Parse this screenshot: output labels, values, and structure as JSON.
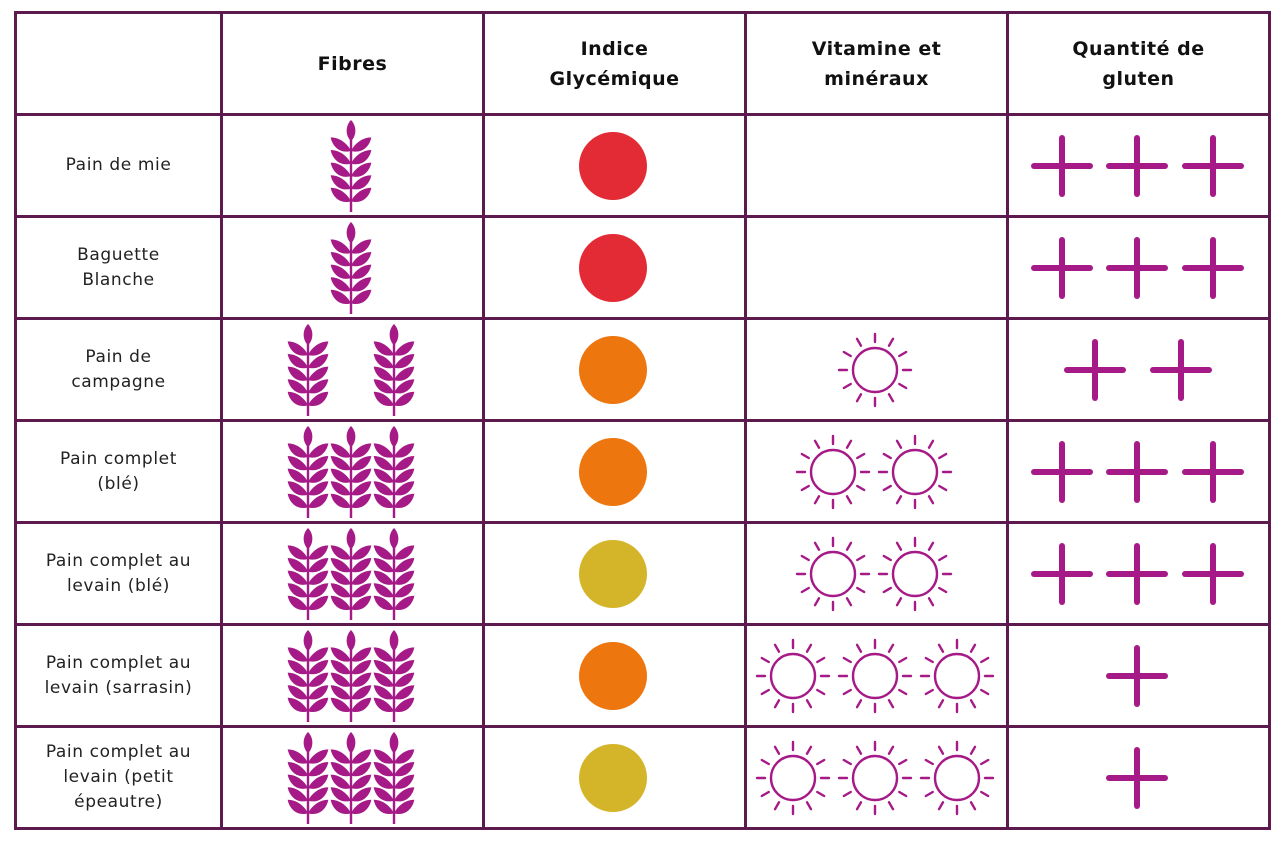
{
  "headers": [
    "",
    "Fibres",
    "Indice\nGlycémique",
    "Vitamine et\nminéraux",
    "Quantité de\ngluten"
  ],
  "colors": {
    "border": "#5c1a4e",
    "icon": "#a51a86",
    "gi_red": "#e32b35",
    "gi_orange": "#ed760f",
    "gi_yellow": "#d4b52a"
  },
  "rows": [
    {
      "name": "Pain de mie",
      "fibres": 1,
      "gi": "red",
      "vitamins": 0,
      "gluten": 3
    },
    {
      "name": "Baguette\nBlanche",
      "fibres": 1,
      "gi": "red",
      "vitamins": 0,
      "gluten": 3
    },
    {
      "name": "Pain de\ncampagne",
      "fibres": 2,
      "gi": "orange",
      "vitamins": 1,
      "gluten": 2
    },
    {
      "name": "Pain complet\n(blé)",
      "fibres": 3,
      "gi": "orange",
      "vitamins": 2,
      "gluten": 3
    },
    {
      "name": "Pain complet au\nlevain (blé)",
      "fibres": 3,
      "gi": "yellow",
      "vitamins": 2,
      "gluten": 3
    },
    {
      "name": "Pain complet au\nlevain (sarrasin)",
      "fibres": 3,
      "gi": "orange",
      "vitamins": 3,
      "gluten": 1
    },
    {
      "name": "Pain complet au\nlevain (petit\népeautre)",
      "fibres": 3,
      "gi": "yellow",
      "vitamins": 3,
      "gluten": 1
    }
  ],
  "icons": {
    "fibres": "wheat-icon",
    "gi": "dot-icon",
    "vitamins": "sun-icon",
    "gluten": "plus-icon"
  }
}
